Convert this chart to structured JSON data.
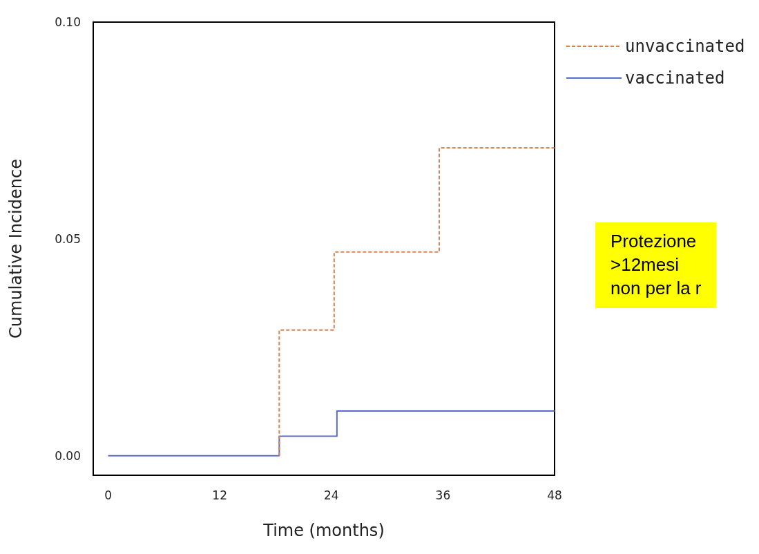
{
  "chart_data": {
    "type": "step",
    "xlabel": "Time (months)",
    "ylabel": "Cumulative Incidence",
    "xlim": [
      -1.6,
      48
    ],
    "xticks": [
      0,
      12,
      24,
      36,
      48
    ],
    "ylim": [
      -0.0045,
      0.1
    ],
    "yticks": [
      {
        "value": 0,
        "label": "0.00"
      },
      0.05,
      {
        "value": 0.1,
        "label": "0.10"
      }
    ],
    "grid": false,
    "legend": "top right",
    "marker": "none",
    "series": [
      {
        "name": "unvaccinated",
        "color": "#d9824f",
        "line_style": "dashed",
        "x": [
          18.4,
          18.4,
          24.3,
          35.6,
          48
        ],
        "values": [
          0,
          0.029,
          0.047,
          0.071,
          0.071
        ]
      },
      {
        "name": "vaccinated",
        "color": "#5a6bd0",
        "line_style": "solid",
        "x": [
          0,
          18.4,
          24.6,
          48
        ],
        "values": [
          0,
          0.0045,
          0.0103,
          0.0103
        ]
      }
    ],
    "annotations": [
      "Protezione\n>12mesi\nnon per la r"
    ]
  }
}
